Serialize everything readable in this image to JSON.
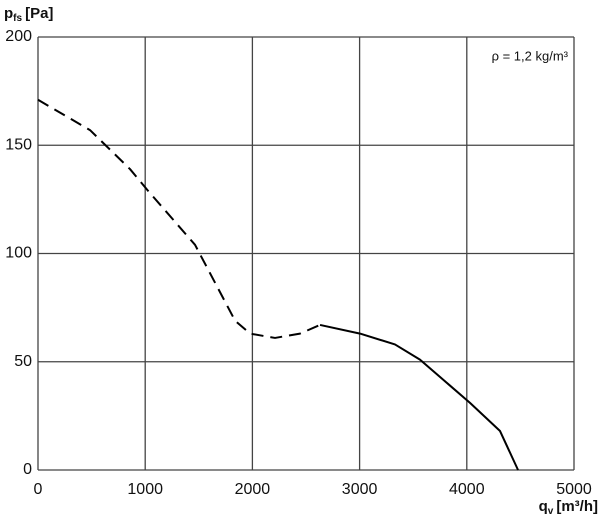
{
  "chart_data": {
    "type": "line",
    "ylabel": {
      "symbol": "p",
      "subscript": "fs",
      "unit": "[Pa]"
    },
    "xlabel": {
      "symbol": "q",
      "subscript": "v",
      "unit": "[m³/h]"
    },
    "annotation": "ρ = 1,2 kg/m³",
    "xlim": [
      0,
      5000
    ],
    "xticks": [
      0,
      1000,
      2000,
      3000,
      4000,
      5000
    ],
    "ylim": [
      0,
      200
    ],
    "yticks": [
      0,
      50,
      100,
      150,
      200
    ],
    "grid": true,
    "series": [
      {
        "color": "#000000",
        "dashed": true,
        "x": [
          0,
          485,
          858,
          1026,
          1465,
          1838,
          1978,
          2211,
          2444,
          2631
        ],
        "values": [
          171,
          157,
          139,
          129,
          104,
          69,
          63,
          61,
          63,
          67
        ]
      },
      {
        "color": "#000000",
        "dashed": false,
        "x": [
          2631,
          3004,
          3330,
          3563,
          3843,
          4030,
          4310,
          4478
        ],
        "values": [
          67,
          63,
          58,
          51,
          39,
          31,
          18,
          0
        ]
      }
    ]
  }
}
